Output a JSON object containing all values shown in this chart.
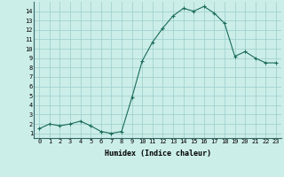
{
  "x": [
    0,
    1,
    2,
    3,
    4,
    5,
    6,
    7,
    8,
    9,
    10,
    11,
    12,
    13,
    14,
    15,
    16,
    17,
    18,
    19,
    20,
    21,
    22,
    23
  ],
  "y": [
    1.5,
    2.0,
    1.8,
    2.0,
    2.3,
    1.8,
    1.2,
    1.0,
    1.2,
    4.8,
    8.7,
    10.7,
    12.2,
    13.5,
    14.3,
    14.0,
    14.5,
    13.8,
    12.7,
    9.2,
    9.7,
    9.0,
    8.5,
    8.5
  ],
  "xlabel": "Humidex (Indice chaleur)",
  "xlim": [
    -0.5,
    23.5
  ],
  "ylim": [
    0.5,
    15
  ],
  "yticks": [
    1,
    2,
    3,
    4,
    5,
    6,
    7,
    8,
    9,
    10,
    11,
    12,
    13,
    14
  ],
  "xticks": [
    0,
    1,
    2,
    3,
    4,
    5,
    6,
    7,
    8,
    9,
    10,
    11,
    12,
    13,
    14,
    15,
    16,
    17,
    18,
    19,
    20,
    21,
    22,
    23
  ],
  "line_color": "#1a6b5a",
  "marker": "+",
  "marker_size": 3,
  "bg_color": "#cceee8",
  "grid_color": "#99cccc",
  "label_fontsize": 6,
  "tick_fontsize": 5
}
